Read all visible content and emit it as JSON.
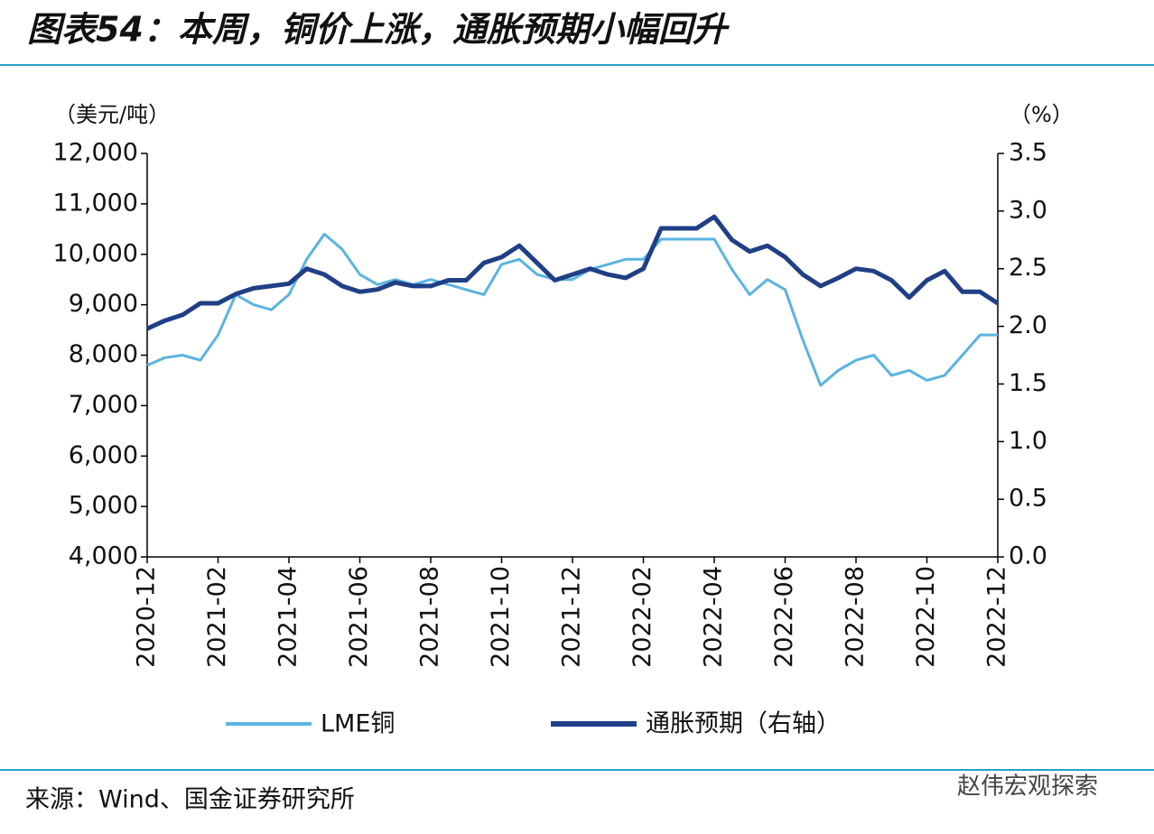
{
  "chart_data": {
    "type": "line",
    "title": "图表54：本周，铜价上涨，通胀预期小幅回升",
    "y_label": "（美元/吨）",
    "y2_label": "（%）",
    "source": "来源：Wind、国金证券研究所",
    "watermark": "赵伟宏观探索",
    "categories": [
      "2020-12",
      null,
      null,
      null,
      "2021-02",
      null,
      null,
      null,
      "2021-04",
      null,
      null,
      null,
      "2021-06",
      null,
      null,
      null,
      "2021-08",
      null,
      null,
      null,
      "2021-10",
      null,
      null,
      null,
      "2021-12",
      null,
      null,
      null,
      "2022-02",
      null,
      null,
      null,
      "2022-04",
      null,
      null,
      null,
      "2022-06",
      null,
      null,
      null,
      "2022-08",
      null,
      null,
      null,
      "2022-10",
      null,
      null,
      null,
      "2022-12"
    ],
    "ylim": [
      4000,
      12000
    ],
    "yticks": [
      {
        "value": 4000,
        "label": "4,000"
      },
      {
        "value": 5000,
        "label": "5,000"
      },
      {
        "value": 6000,
        "label": "6,000"
      },
      {
        "value": 7000,
        "label": "7,000"
      },
      {
        "value": 8000,
        "label": "8,000"
      },
      {
        "value": 9000,
        "label": "9,000"
      },
      {
        "value": 10000,
        "label": "10,000"
      },
      {
        "value": 11000,
        "label": "11,000"
      },
      {
        "value": 12000,
        "label": "12,000"
      }
    ],
    "y2lim": [
      0,
      3.5
    ],
    "y2ticks": [
      {
        "value": 0,
        "label": "0.0"
      },
      0.5,
      {
        "value": 1,
        "label": "1.0"
      },
      1.5,
      {
        "value": 2,
        "label": "2.0"
      },
      2.5,
      {
        "value": 3,
        "label": "3.0"
      },
      3.5
    ],
    "series": [
      {
        "name": "LME铜",
        "color": "#5ab4e0",
        "axis": "y",
        "values": [
          7800,
          7950,
          8000,
          7900,
          8400,
          9200,
          9000,
          8900,
          9200,
          9900,
          10400,
          10100,
          9600,
          9400,
          9500,
          9400,
          9500,
          9400,
          9300,
          9200,
          9800,
          9900,
          9600,
          9500,
          9500,
          9700,
          9800,
          9900,
          9900,
          10300,
          10300,
          10300,
          10300,
          9700,
          9200,
          9500,
          9300,
          8300,
          7400,
          7700,
          7900,
          8000,
          7600,
          7700,
          7500,
          7600,
          8000,
          8400,
          8400
        ]
      },
      {
        "name": "通胀预期（右轴）",
        "color": "#1f3f86",
        "axis": "y2",
        "values": [
          1.98,
          2.05,
          2.1,
          2.2,
          2.2,
          2.28,
          2.33,
          2.35,
          2.37,
          2.5,
          2.45,
          2.35,
          2.3,
          2.32,
          2.38,
          2.35,
          2.35,
          2.4,
          2.4,
          2.55,
          2.6,
          2.7,
          2.55,
          2.4,
          2.45,
          2.5,
          2.45,
          2.42,
          2.5,
          2.85,
          2.85,
          2.85,
          2.95,
          2.75,
          2.65,
          2.7,
          2.6,
          2.45,
          2.35,
          2.42,
          2.5,
          2.48,
          2.4,
          2.25,
          2.4,
          2.48,
          2.3,
          2.3,
          2.2
        ]
      }
    ]
  }
}
